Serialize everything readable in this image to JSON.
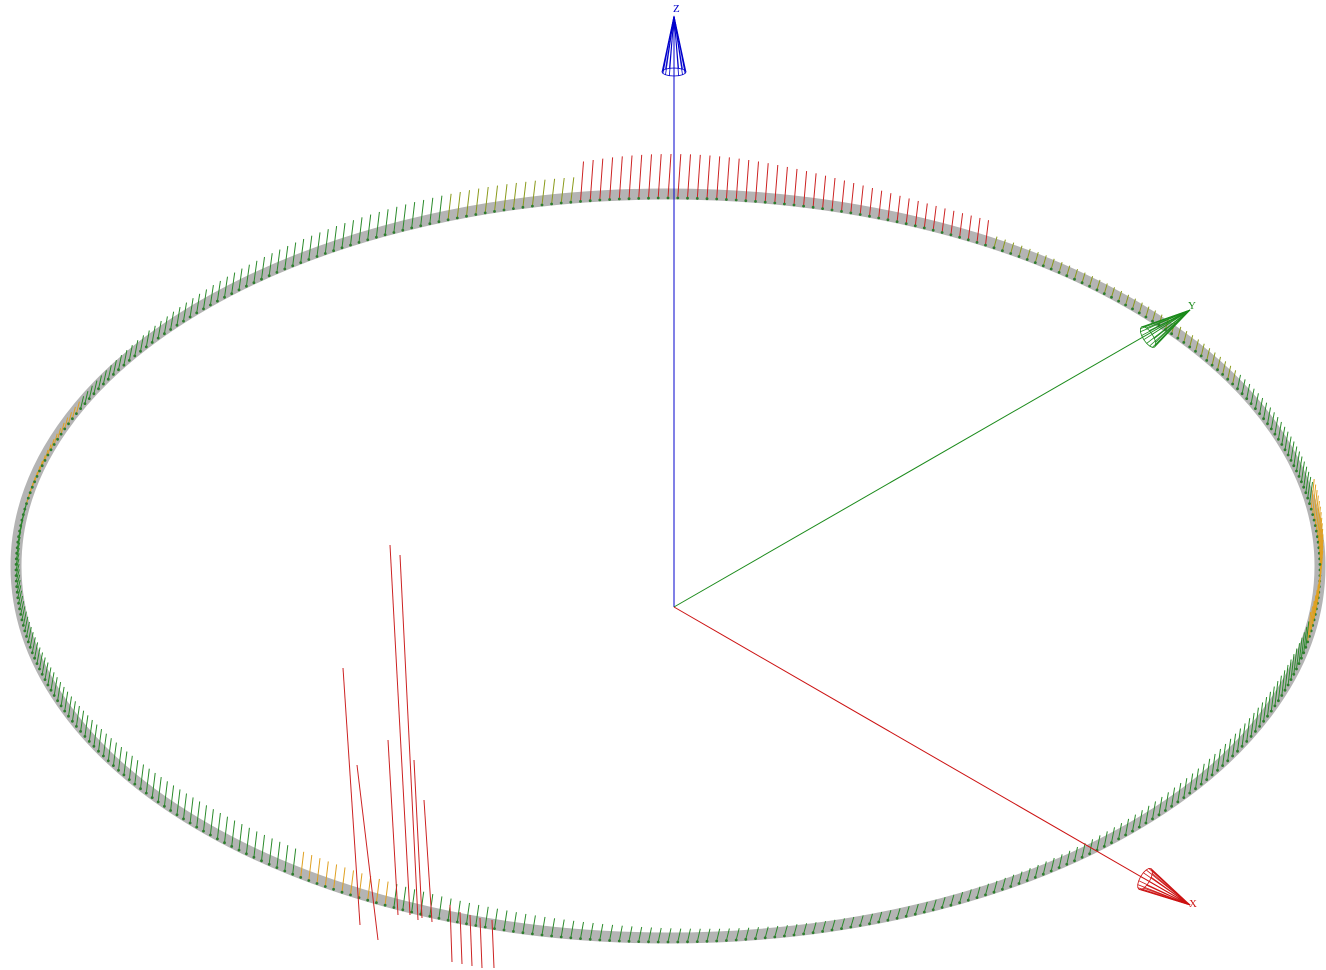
{
  "scene": {
    "axes": [
      {
        "id": "z",
        "label": "Z",
        "color": "#0000cc"
      },
      {
        "id": "y",
        "label": "Y",
        "color": "#1a8a1a"
      },
      {
        "id": "x",
        "label": "X",
        "color": "#cc1111"
      }
    ],
    "ring": {
      "color": "#b4b4b4",
      "node_color": "#2e7d2e"
    },
    "vector_colors": {
      "green": "#2a8a2a",
      "olive": "#8a9a1a",
      "orange": "#e0a020",
      "red": "#cc2222"
    }
  }
}
